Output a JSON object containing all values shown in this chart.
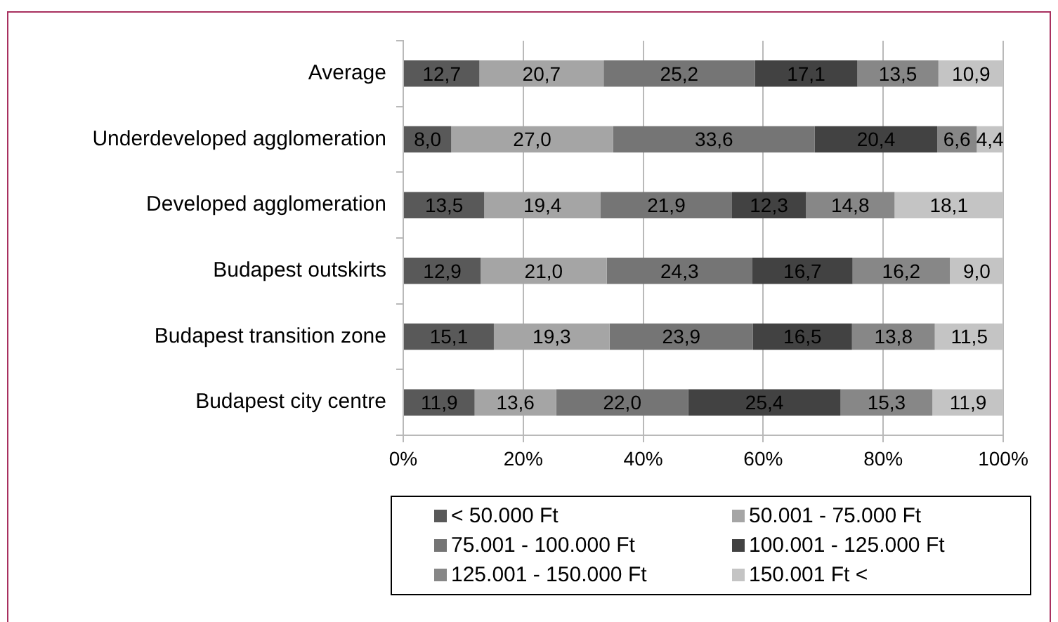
{
  "chart_data": {
    "type": "bar",
    "orientation": "horizontal",
    "stacked": true,
    "categories": [
      "Average",
      "Underdeveloped agglomeration",
      "Developed agglomeration",
      "Budapest outskirts",
      "Budapest transition zone",
      "Budapest city centre"
    ],
    "series": [
      {
        "name": "< 50.000 Ft",
        "color": "#595959",
        "values": [
          12.7,
          8.0,
          13.5,
          12.9,
          15.1,
          11.9
        ],
        "value_labels": [
          "12,7",
          "8,0",
          "13,5",
          "12,9",
          "15,1",
          "11,9"
        ]
      },
      {
        "name": "50.001 - 75.000 Ft",
        "color": "#a5a5a5",
        "values": [
          20.7,
          27.0,
          19.4,
          21.0,
          19.3,
          13.6
        ],
        "value_labels": [
          "20,7",
          "27,0",
          "19,4",
          "21,0",
          "19,3",
          "13,6"
        ]
      },
      {
        "name": "75.001 - 100.000 Ft",
        "color": "#757575",
        "values": [
          25.2,
          33.6,
          21.9,
          24.3,
          23.9,
          22.0
        ],
        "value_labels": [
          "25,2",
          "33,6",
          "21,9",
          "24,3",
          "23,9",
          "22,0"
        ]
      },
      {
        "name": "100.001 - 125.000 Ft",
        "color": "#424242",
        "values": [
          17.1,
          20.4,
          12.3,
          16.7,
          16.5,
          25.4
        ],
        "value_labels": [
          "17,1",
          "20,4",
          "12,3",
          "16,7",
          "16,5",
          "25,4"
        ]
      },
      {
        "name": "125.001 - 150.000 Ft",
        "color": "#878787",
        "values": [
          13.5,
          6.6,
          14.8,
          16.2,
          13.8,
          15.3
        ],
        "value_labels": [
          "13,5",
          "6,6",
          "14,8",
          "16,2",
          "13,8",
          "15,3"
        ]
      },
      {
        "name": "150.001 Ft <",
        "color": "#c4c4c4",
        "values": [
          10.9,
          4.4,
          18.1,
          9.0,
          11.5,
          11.9
        ],
        "value_labels": [
          "10,9",
          "4,4",
          "18,1",
          "9,0",
          "11,5",
          "11,9"
        ]
      }
    ],
    "xlim": [
      0,
      100
    ],
    "xticks": [
      {
        "value": 0,
        "label": "0%"
      },
      {
        "value": 20,
        "label": "20%"
      },
      {
        "value": 40,
        "label": "40%"
      },
      {
        "value": 60,
        "label": "60%"
      },
      {
        "value": 80,
        "label": "80%"
      },
      {
        "value": 100,
        "label": "100%"
      }
    ],
    "grid": "x",
    "legend": "bottom"
  }
}
